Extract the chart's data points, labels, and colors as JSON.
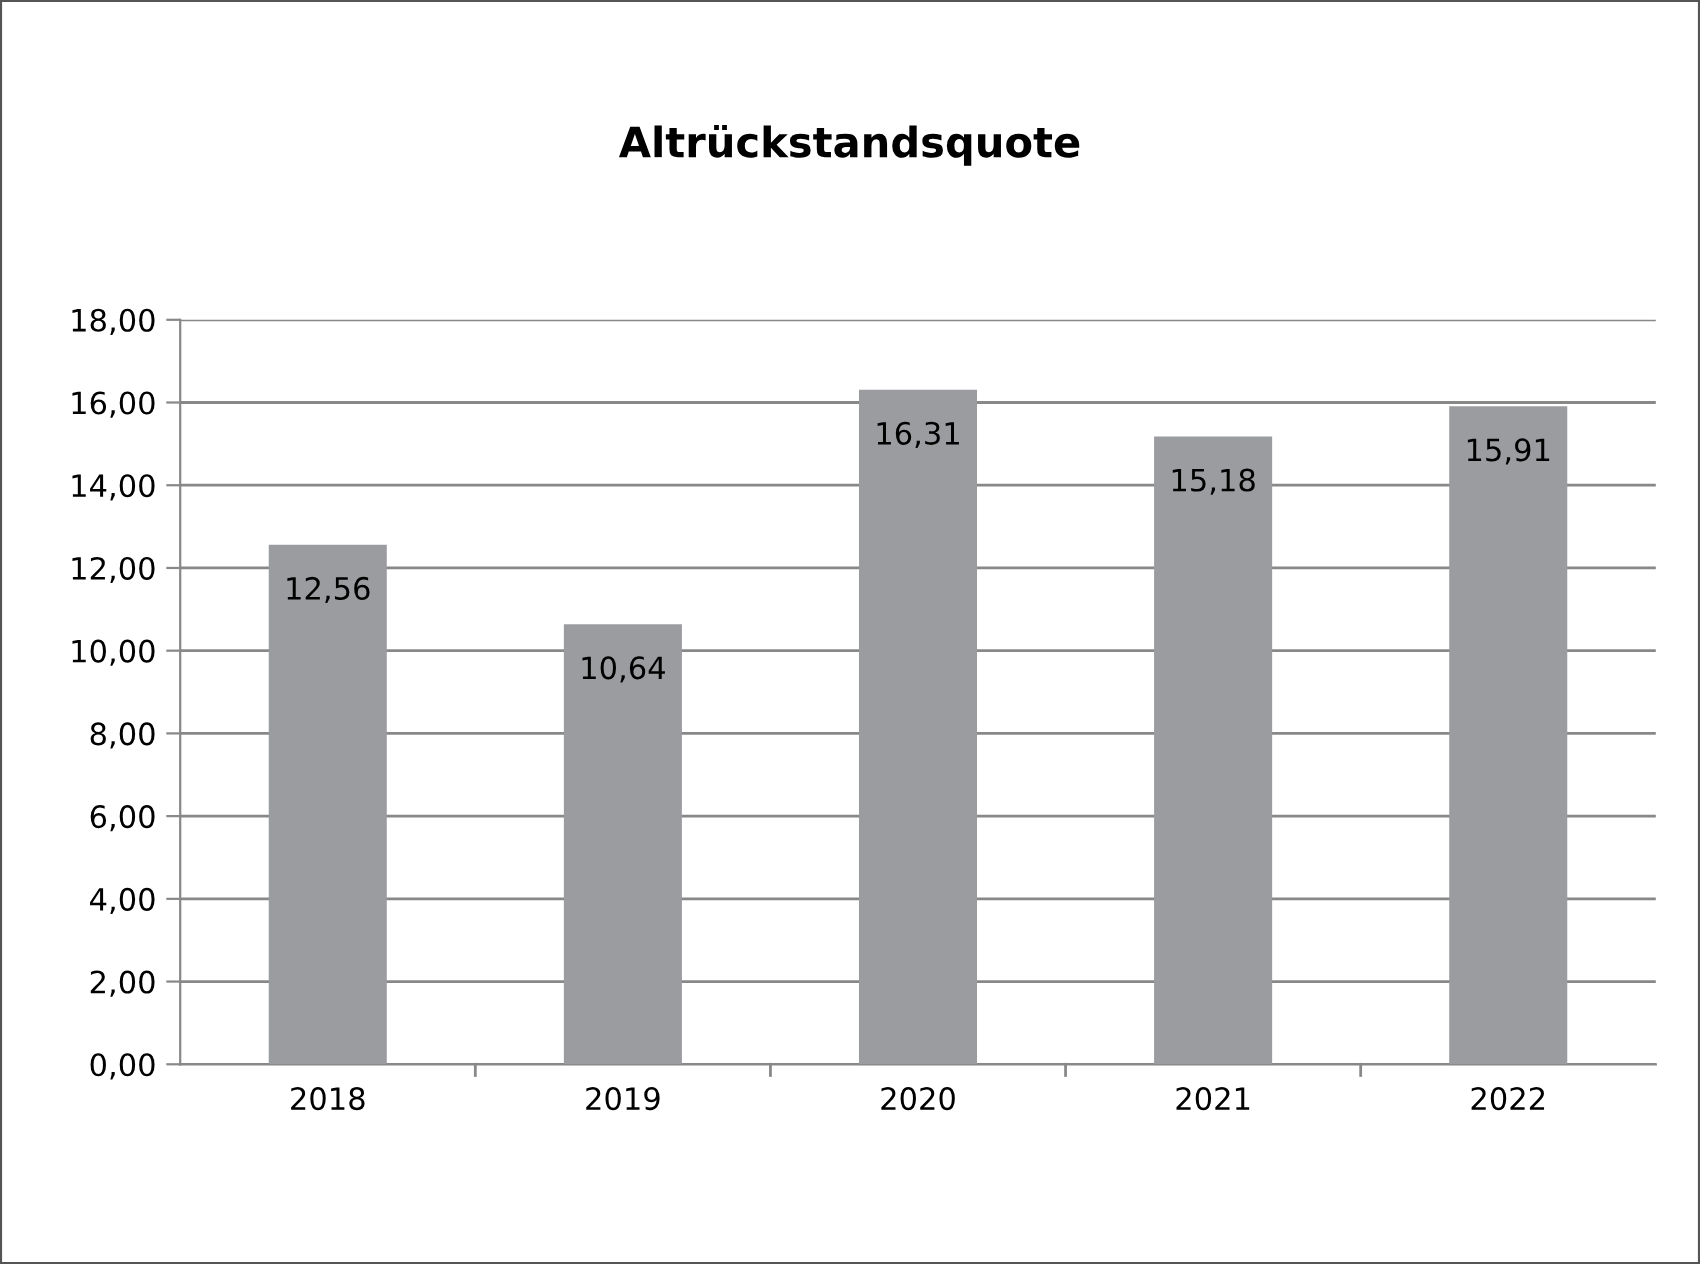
{
  "chart_data": {
    "type": "bar",
    "title": "Altrückstandsquote",
    "categories": [
      "2018",
      "2019",
      "2020",
      "2021",
      "2022"
    ],
    "values": [
      12.56,
      10.64,
      16.31,
      15.18,
      15.91
    ],
    "value_labels": [
      "12,56",
      "10,64",
      "16,31",
      "15,18",
      "15,91"
    ],
    "color": "#9a9c9f",
    "ylim": [
      0,
      18
    ],
    "yticks": [
      {
        "value": 0,
        "label": "0,00"
      },
      {
        "value": 2,
        "label": "2,00"
      },
      {
        "value": 4,
        "label": "4,00"
      },
      {
        "value": 6,
        "label": "6,00"
      },
      {
        "value": 8,
        "label": "8,00"
      },
      {
        "value": 10,
        "label": "10,00"
      },
      {
        "value": 12,
        "label": "12,00"
      },
      {
        "value": 14,
        "label": "14,00"
      },
      {
        "value": 16,
        "label": "16,00"
      },
      {
        "value": 18,
        "label": "18,00"
      }
    ],
    "grid": "y",
    "legend": false
  }
}
